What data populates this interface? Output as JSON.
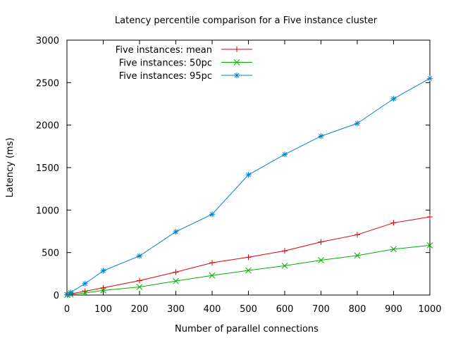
{
  "chart_data": {
    "type": "line",
    "title": "Latency percentile comparison for a Five instance cluster",
    "xlabel": "Number of parallel connections",
    "ylabel": "Latency (ms)",
    "xlim": [
      0,
      1000
    ],
    "ylim": [
      0,
      3000
    ],
    "x_ticks": [
      0,
      100,
      200,
      300,
      400,
      500,
      600,
      700,
      800,
      900,
      1000
    ],
    "y_ticks": [
      0,
      500,
      1000,
      1500,
      2000,
      2500,
      3000
    ],
    "grid": false,
    "legend_position": "top-left",
    "x": [
      1,
      10,
      50,
      100,
      200,
      300,
      400,
      500,
      600,
      700,
      800,
      900,
      1000
    ],
    "series": [
      {
        "name": "Five instances: mean",
        "color": "#e00000",
        "marker": "plus",
        "values": [
          2,
          15,
          45,
          85,
          170,
          270,
          380,
          445,
          520,
          625,
          710,
          850,
          920
        ]
      },
      {
        "name": "Five instances: 50pc",
        "color": "#00b000",
        "marker": "cross",
        "values": [
          1,
          7,
          25,
          55,
          95,
          165,
          230,
          290,
          345,
          410,
          465,
          540,
          585
        ]
      },
      {
        "name": "Five instances: 95pc",
        "color": "#0080d0",
        "marker": "star",
        "values": [
          5,
          30,
          135,
          285,
          460,
          745,
          950,
          1415,
          1655,
          1870,
          2020,
          2310,
          2550
        ]
      }
    ]
  }
}
